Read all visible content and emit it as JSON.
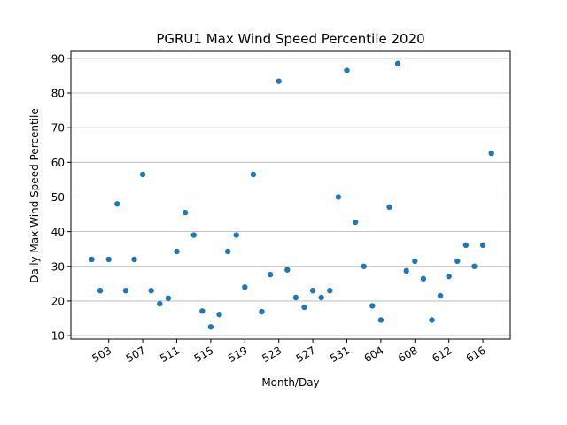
{
  "chart_data": {
    "type": "scatter",
    "title": "PGRU1 Max Wind Speed Percentile 2020",
    "xlabel": "Month/Day",
    "ylabel": "Daily Max Wind Speed Percentile",
    "x_tick_labels": [
      "503",
      "507",
      "511",
      "515",
      "519",
      "523",
      "527",
      "531",
      "604",
      "608",
      "612",
      "616"
    ],
    "y_ticks": [
      10,
      20,
      30,
      40,
      50,
      60,
      70,
      80,
      90
    ],
    "ylim": [
      9,
      92
    ],
    "grid": "horizontal",
    "marker_color": "#1f77b4",
    "series": [
      {
        "x": [
          "501",
          "502",
          "503",
          "504",
          "505",
          "506",
          "507",
          "508",
          "509",
          "510",
          "511",
          "512",
          "513",
          "514",
          "515",
          "516",
          "517",
          "518",
          "519",
          "520",
          "521",
          "522",
          "523",
          "524",
          "525",
          "526",
          "527",
          "528",
          "529",
          "530",
          "531",
          "601",
          "602",
          "603",
          "604",
          "605",
          "606",
          "607",
          "608",
          "609",
          "610",
          "611",
          "612",
          "613",
          "614",
          "615",
          "616",
          "617"
        ],
        "values": [
          32,
          23,
          32,
          48,
          23,
          32,
          56.5,
          23,
          19.2,
          20.8,
          34.3,
          45.5,
          39,
          17.1,
          12.5,
          16.1,
          34.3,
          39,
          24,
          56.5,
          16.9,
          27.6,
          83.4,
          29,
          21,
          18.2,
          23,
          21,
          23,
          50,
          86.5,
          42.7,
          30,
          18.6,
          14.5,
          47.1,
          88.5,
          28.7,
          31.5,
          26.4,
          14.5,
          21.5,
          27.1,
          31.5,
          36.1,
          30,
          36.1,
          62.6
        ]
      }
    ]
  }
}
